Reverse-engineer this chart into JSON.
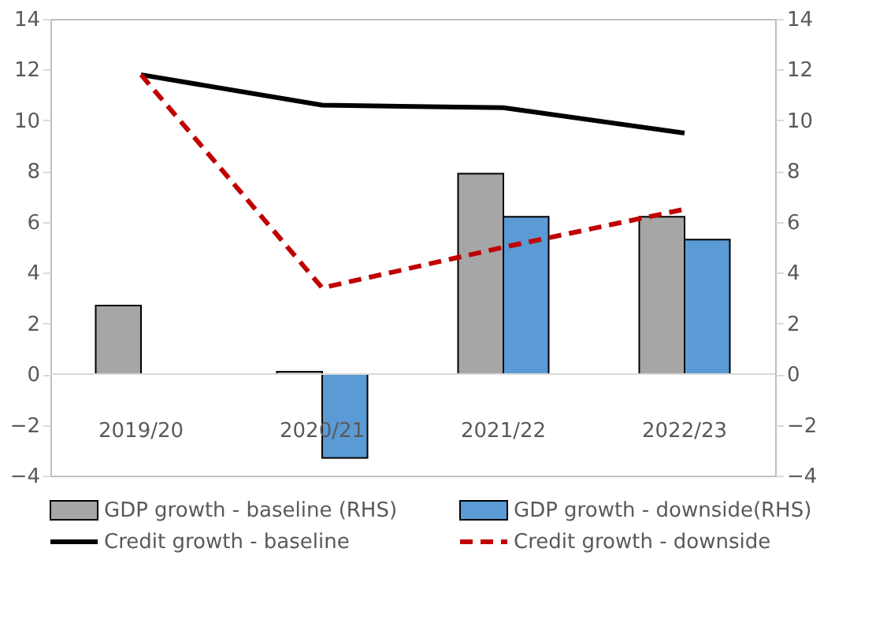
{
  "chart_data": {
    "type": "bar",
    "categories": [
      "2019/20",
      "2020/21",
      "2021/22",
      "2022/23"
    ],
    "series": [
      {
        "name": "GDP growth - baseline (RHS)",
        "type": "bar",
        "axis": "y2",
        "color": "#a6a6a6",
        "values": [
          2.7,
          0.1,
          7.9,
          6.2
        ]
      },
      {
        "name": "GDP growth - downside(RHS)",
        "type": "bar",
        "axis": "y2",
        "color": "#5b9bd5",
        "values": [
          null,
          -3.3,
          6.2,
          5.3
        ]
      },
      {
        "name": "Credit growth - baseline",
        "type": "line",
        "color": "#000000",
        "line_style": "solid",
        "values": [
          11.8,
          10.6,
          10.5,
          9.5
        ]
      },
      {
        "name": "Credit growth - downside",
        "type": "line",
        "color": "#c00000",
        "line_style": "dashed",
        "values": [
          11.8,
          3.4,
          5.0,
          6.5
        ]
      }
    ],
    "ylim": [
      -4,
      14
    ],
    "yticks": [
      -4,
      -2,
      0,
      2,
      4,
      6,
      8,
      10,
      12,
      14
    ],
    "y2lim": [
      -4,
      14
    ],
    "y2ticks": [
      -4,
      -2,
      0,
      2,
      4,
      6,
      8,
      10,
      12,
      14
    ],
    "ref_lines": [
      {
        "axis": "y",
        "value": 0,
        "color": "#d9d9d9"
      }
    ],
    "grid": false,
    "legend": "bottom"
  }
}
